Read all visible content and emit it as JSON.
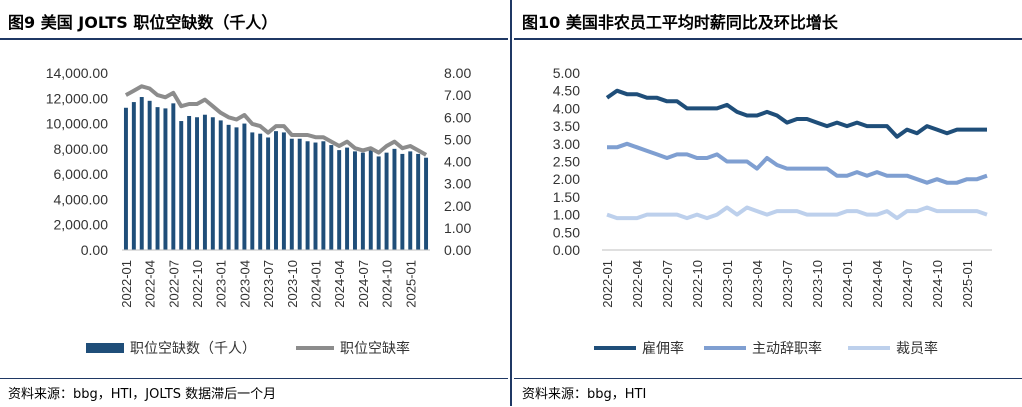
{
  "left": {
    "title": "图9   美国 JOLTS 职位空缺数（千人）",
    "source": "资料来源：bbg，HTI，JOLTS 数据滞后一个月"
  },
  "right": {
    "title": "图10 美国非农员工平均时薪同比及环比增长",
    "source": "资料来源：bbg，HTI"
  },
  "colors": {
    "bar": "#1f4e79",
    "rate_line": "#8c8c8c",
    "employment": "#1f4e79",
    "quits": "#7f9fd1",
    "layoffs": "#bdd0ec"
  },
  "chart_data": [
    {
      "type": "bar+line",
      "title": "美国 JOLTS 职位空缺数（千人）",
      "categories": [
        "2022-01",
        "2022-02",
        "2022-03",
        "2022-04",
        "2022-05",
        "2022-06",
        "2022-07",
        "2022-08",
        "2022-09",
        "2022-10",
        "2022-11",
        "2022-12",
        "2023-01",
        "2023-02",
        "2023-03",
        "2023-04",
        "2023-05",
        "2023-06",
        "2023-07",
        "2023-08",
        "2023-09",
        "2023-10",
        "2023-11",
        "2023-12",
        "2024-01",
        "2024-02",
        "2024-03",
        "2024-04",
        "2024-05",
        "2024-06",
        "2024-07",
        "2024-08",
        "2024-09",
        "2024-10",
        "2024-11",
        "2024-12",
        "2025-01",
        "2025-02",
        "2025-03"
      ],
      "x_tick_labels": [
        "2022-01",
        "2022-04",
        "2022-07",
        "2022-10",
        "2023-01",
        "2023-04",
        "2023-07",
        "2023-10",
        "2024-01",
        "2024-04",
        "2024-07",
        "2024-10",
        "2025-01"
      ],
      "series": [
        {
          "name": "职位空缺数（千人）",
          "type": "bar",
          "axis": "left",
          "values": [
            11250,
            11700,
            12100,
            11800,
            11300,
            11200,
            11600,
            10200,
            10600,
            10500,
            10700,
            10500,
            10250,
            9900,
            9700,
            10000,
            9300,
            9200,
            8900,
            9400,
            9300,
            8800,
            8800,
            8600,
            8500,
            8600,
            8300,
            7900,
            8100,
            7800,
            7700,
            7900,
            7400,
            7700,
            8000,
            7600,
            7800,
            7600,
            7300
          ]
        },
        {
          "name": "职位空缺率",
          "type": "line",
          "axis": "right",
          "values": [
            7.0,
            7.2,
            7.4,
            7.3,
            7.0,
            6.9,
            7.1,
            6.5,
            6.6,
            6.6,
            6.8,
            6.5,
            6.2,
            6.0,
            5.9,
            6.1,
            5.7,
            5.6,
            5.3,
            5.6,
            5.6,
            5.2,
            5.2,
            5.2,
            5.1,
            5.1,
            4.9,
            4.7,
            4.9,
            4.6,
            4.5,
            4.6,
            4.4,
            4.7,
            4.9,
            4.6,
            4.7,
            4.5,
            4.3
          ]
        }
      ],
      "y_left": {
        "min": 0,
        "max": 14000,
        "ticks": [
          "0.00",
          "2,000.00",
          "4,000.00",
          "6,000.00",
          "8,000.00",
          "10,000.00",
          "12,000.00",
          "14,000.00"
        ]
      },
      "y_right": {
        "min": 0,
        "max": 8,
        "ticks": [
          "0.00",
          "1.00",
          "2.00",
          "3.00",
          "4.00",
          "5.00",
          "6.00",
          "7.00",
          "8.00"
        ]
      },
      "legend": {
        "position": "bottom",
        "items": [
          "职位空缺数（千人）",
          "职位空缺率"
        ]
      }
    },
    {
      "type": "line",
      "title": "美国非农员工平均时薪同比及环比增长",
      "categories": [
        "2022-01",
        "2022-02",
        "2022-03",
        "2022-04",
        "2022-05",
        "2022-06",
        "2022-07",
        "2022-08",
        "2022-09",
        "2022-10",
        "2022-11",
        "2022-12",
        "2023-01",
        "2023-02",
        "2023-03",
        "2023-04",
        "2023-05",
        "2023-06",
        "2023-07",
        "2023-08",
        "2023-09",
        "2023-10",
        "2023-11",
        "2023-12",
        "2024-01",
        "2024-02",
        "2024-03",
        "2024-04",
        "2024-05",
        "2024-06",
        "2024-07",
        "2024-08",
        "2024-09",
        "2024-10",
        "2024-11",
        "2024-12",
        "2025-01",
        "2025-02",
        "2025-03"
      ],
      "x_tick_labels": [
        "2022-01",
        "2022-04",
        "2022-07",
        "2022-10",
        "2023-01",
        "2023-04",
        "2023-07",
        "2023-10",
        "2024-01",
        "2024-04",
        "2024-07",
        "2024-10",
        "2025-01"
      ],
      "series": [
        {
          "name": "雇佣率",
          "values": [
            4.3,
            4.5,
            4.4,
            4.4,
            4.3,
            4.3,
            4.2,
            4.2,
            4.0,
            4.0,
            4.0,
            4.0,
            4.1,
            3.9,
            3.8,
            3.8,
            3.9,
            3.8,
            3.6,
            3.7,
            3.7,
            3.6,
            3.5,
            3.6,
            3.5,
            3.6,
            3.5,
            3.5,
            3.5,
            3.2,
            3.4,
            3.3,
            3.5,
            3.4,
            3.3,
            3.4,
            3.4,
            3.4,
            3.4
          ]
        },
        {
          "name": "主动辞职率",
          "values": [
            2.9,
            2.9,
            3.0,
            2.9,
            2.8,
            2.7,
            2.6,
            2.7,
            2.7,
            2.6,
            2.6,
            2.7,
            2.5,
            2.5,
            2.5,
            2.3,
            2.6,
            2.4,
            2.3,
            2.3,
            2.3,
            2.3,
            2.3,
            2.1,
            2.1,
            2.2,
            2.1,
            2.2,
            2.1,
            2.1,
            2.1,
            2.0,
            1.9,
            2.0,
            1.9,
            1.9,
            2.0,
            2.0,
            2.1
          ]
        },
        {
          "name": "裁员率",
          "values": [
            1.0,
            0.9,
            0.9,
            0.9,
            1.0,
            1.0,
            1.0,
            1.0,
            0.9,
            1.0,
            0.9,
            1.0,
            1.2,
            1.0,
            1.2,
            1.1,
            1.0,
            1.1,
            1.1,
            1.1,
            1.0,
            1.0,
            1.0,
            1.0,
            1.1,
            1.1,
            1.0,
            1.0,
            1.1,
            0.9,
            1.1,
            1.1,
            1.2,
            1.1,
            1.1,
            1.1,
            1.1,
            1.1,
            1.0
          ]
        }
      ],
      "y_axis": {
        "min": 0,
        "max": 5,
        "ticks": [
          "0.00",
          "0.50",
          "1.00",
          "1.50",
          "2.00",
          "2.50",
          "3.00",
          "3.50",
          "4.00",
          "4.50",
          "5.00"
        ]
      },
      "legend": {
        "position": "bottom",
        "items": [
          "雇佣率",
          "主动辞职率",
          "裁员率"
        ]
      }
    }
  ]
}
